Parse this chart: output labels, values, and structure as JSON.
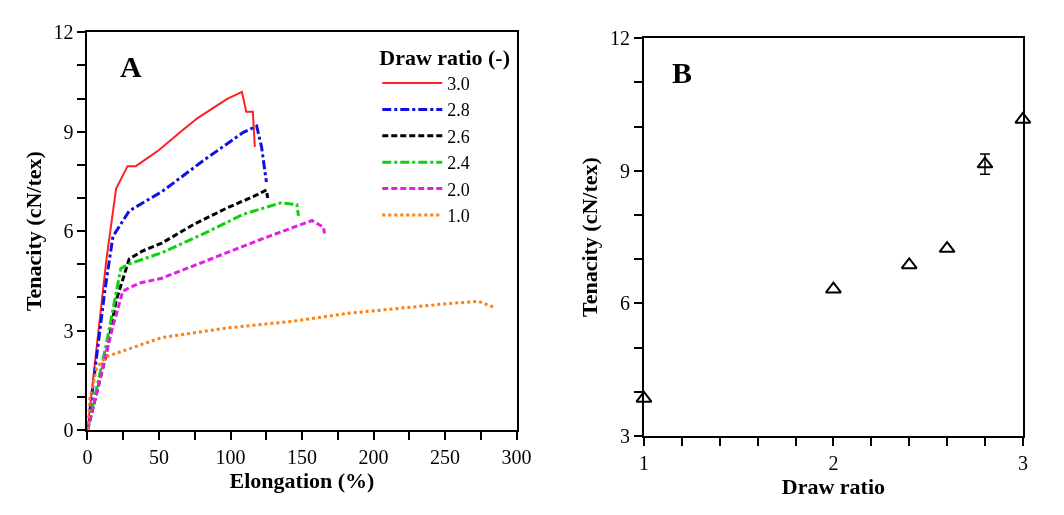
{
  "chart_data": [
    {
      "type": "line",
      "xlabel": "Elongation (%)",
      "ylabel": "Tenacity (cN/tex)",
      "legend_title": "Draw ratio (-)",
      "legend": "top right",
      "annotations": [
        "A"
      ],
      "xlim": [
        0,
        300
      ],
      "xticks": [
        0,
        {
          "value": 25,
          "label": null
        },
        50,
        {
          "value": 75,
          "label": null
        },
        100,
        {
          "value": 125,
          "label": null
        },
        150,
        {
          "value": 175,
          "label": null
        },
        200,
        {
          "value": 225,
          "label": null
        },
        250,
        {
          "value": 275,
          "label": null
        },
        300
      ],
      "ylim": [
        0,
        12
      ],
      "yticks": [
        0,
        {
          "value": 1,
          "label": null
        },
        {
          "value": 2,
          "label": null
        },
        3,
        {
          "value": 4,
          "label": null
        },
        {
          "value": 5,
          "label": null
        },
        6,
        {
          "value": 7,
          "label": null
        },
        {
          "value": 8,
          "label": null
        },
        9,
        {
          "value": 10,
          "label": null
        },
        {
          "value": 11,
          "label": null
        },
        12
      ],
      "series": [
        {
          "name": "3.0",
          "color": "#ff2020",
          "line_style": "solid",
          "x": [
            0,
            13.3,
            20,
            28,
            33.8,
            49.8,
            65.8,
            77,
            97.7,
            108,
            111,
            115.6,
            117
          ],
          "values": [
            0,
            5.16,
            7.28,
            7.96,
            7.96,
            8.44,
            9.02,
            9.41,
            9.99,
            10.2,
            9.6,
            9.6,
            8.54
          ]
        },
        {
          "name": "2.8",
          "color": "#1010e0",
          "line_style": "dashdot",
          "x": [
            0,
            12.1,
            17.8,
            29.2,
            52,
            81.7,
            109,
            118.3,
            121.7,
            125.1
          ],
          "values": [
            0,
            4.19,
            5.84,
            6.61,
            7.19,
            8.15,
            8.98,
            9.17,
            8.54,
            7.48
          ]
        },
        {
          "name": "2.6",
          "color": "#000000",
          "line_style": "dashed",
          "x": [
            0,
            13,
            20,
            29.2,
            38.4,
            52,
            75,
            97.7,
            118.3,
            125.1,
            126
          ],
          "values": [
            0,
            2.26,
            3.9,
            5.16,
            5.4,
            5.64,
            6.22,
            6.7,
            7.09,
            7.24,
            7.0
          ]
        },
        {
          "name": "2.4",
          "color": "#10d010",
          "line_style": "dashdot",
          "x": [
            0,
            13,
            23.3,
            29.2,
            52,
            81.7,
            109,
            135,
            146.4,
            147.5
          ],
          "values": [
            0,
            2.55,
            4.87,
            5.01,
            5.35,
            5.93,
            6.51,
            6.85,
            6.8,
            6.46
          ]
        },
        {
          "name": "2.0",
          "color": "#e020e0",
          "line_style": "dashed",
          "x": [
            0,
            17.8,
            24.7,
            36.1,
            52,
            86.3,
            120.5,
            157,
            165,
            165.7
          ],
          "values": [
            0,
            3.13,
            4.19,
            4.43,
            4.58,
            5.16,
            5.74,
            6.32,
            6.12,
            5.93
          ]
        },
        {
          "name": "1.0",
          "color": "#ff8010",
          "line_style": "dotted",
          "x": [
            0,
            1.8,
            6.4,
            13,
            29.2,
            52,
            97.7,
            143.4,
            182,
            250.7,
            273.5,
            283.8
          ],
          "values": [
            0,
            1.0,
            1.87,
            2.21,
            2.45,
            2.79,
            3.08,
            3.28,
            3.52,
            3.81,
            3.88,
            3.71
          ]
        }
      ]
    },
    {
      "type": "scatter",
      "xlabel": "Draw ratio",
      "ylabel": "Tenacity (cN/tex)",
      "annotations": [
        "B"
      ],
      "marker": "triangle",
      "xlim": [
        1,
        3
      ],
      "xticks": [
        1,
        {
          "value": 1.2,
          "label": null
        },
        {
          "value": 1.4,
          "label": null
        },
        {
          "value": 1.6,
          "label": null
        },
        {
          "value": 1.8,
          "label": null
        },
        2,
        {
          "value": 2.2,
          "label": null
        },
        {
          "value": 2.4,
          "label": null
        },
        {
          "value": 2.6,
          "label": null
        },
        {
          "value": 2.8,
          "label": null
        },
        3
      ],
      "ylim": [
        3,
        12
      ],
      "yticks": [
        3,
        {
          "value": 4,
          "label": null
        },
        {
          "value": 5,
          "label": null
        },
        6,
        {
          "value": 7,
          "label": null
        },
        {
          "value": 8,
          "label": null
        },
        9,
        {
          "value": 10,
          "label": null
        },
        {
          "value": 11,
          "label": null
        },
        12
      ],
      "series": [
        {
          "color": "#000000",
          "x": [
            1,
            2,
            2.4,
            2.6,
            2.8,
            3
          ],
          "values": [
            3.85,
            6.32,
            6.87,
            7.24,
            9.15,
            10.16
          ],
          "errors": [
            null,
            null,
            null,
            null,
            0.23,
            null
          ]
        }
      ]
    }
  ]
}
